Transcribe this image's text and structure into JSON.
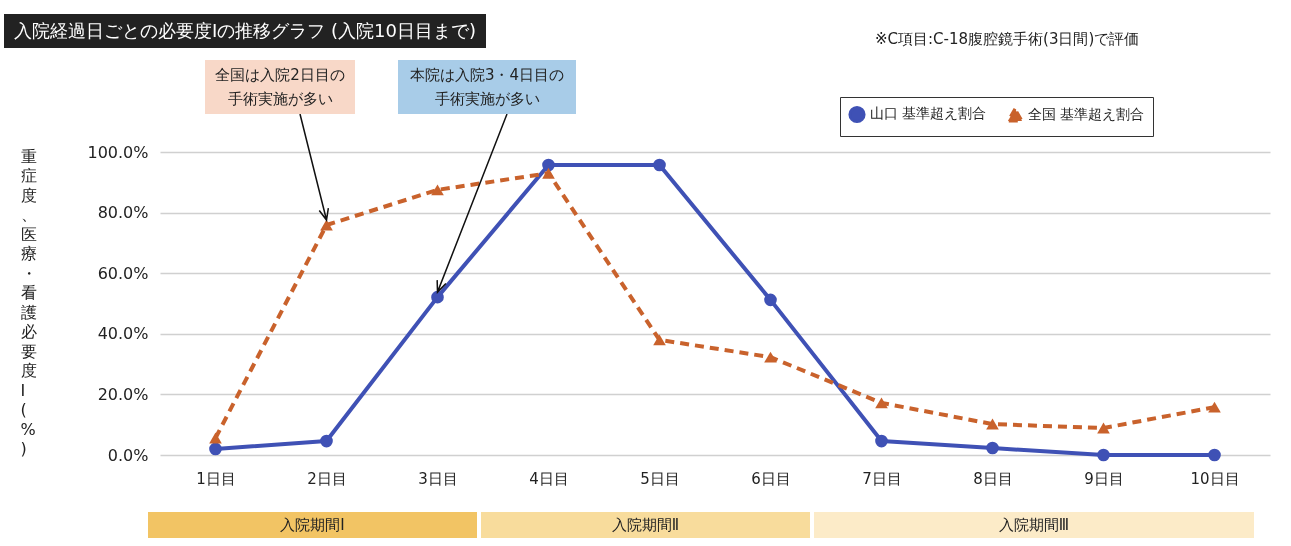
{
  "chart_data": {
    "type": "line",
    "title": "入院経過日ごとの必要度Ⅰの推移グラフ (入院10日目まで)",
    "ylabel": "重症度、医療・看護必要度Ⅰ(%)",
    "categories": [
      "1日目",
      "2日目",
      "3日目",
      "4日目",
      "5日目",
      "6日目",
      "7日目",
      "8日目",
      "9日目",
      "10日目"
    ],
    "series": [
      {
        "name": "山口 基準超え割合",
        "color": "#3f51b5",
        "marker": "circle",
        "line_style": "solid",
        "values": [
          2.0,
          4.6,
          52.1,
          95.7,
          95.7,
          51.2,
          4.6,
          2.3,
          0,
          0
        ]
      },
      {
        "name": "全国 基準超え割合",
        "color": "#c9622c",
        "marker": "triangle",
        "line_style": "dashed",
        "values": [
          5.6,
          75.9,
          87.5,
          93.0,
          38.0,
          32.3,
          17.2,
          10.2,
          8.9,
          15.8
        ]
      }
    ],
    "ylim": [
      0,
      100
    ],
    "yticks": [
      {
        "value": 0,
        "label": "0.0%"
      },
      {
        "value": 20,
        "label": "20.0%"
      },
      {
        "value": 40,
        "label": "40.0%"
      },
      {
        "value": 60,
        "label": "60.0%"
      },
      {
        "value": 80,
        "label": "80.0%"
      },
      {
        "value": 100,
        "label": "100.0%"
      }
    ],
    "grid": "y",
    "legend": "top right",
    "annotations": [
      "※C項目:C-18腹腔鏡手術(3日間)で評価",
      {
        "text": "全国は入院2日目の手術実施が多い",
        "x": "2日目",
        "y": 75.9
      },
      {
        "text": "本院は入院3・4日目の手術実施が多い",
        "x": "3日目",
        "y": 52.1
      },
      "入院期間Ⅰ",
      "入院期間Ⅱ",
      "入院期間Ⅲ"
    ]
  }
}
